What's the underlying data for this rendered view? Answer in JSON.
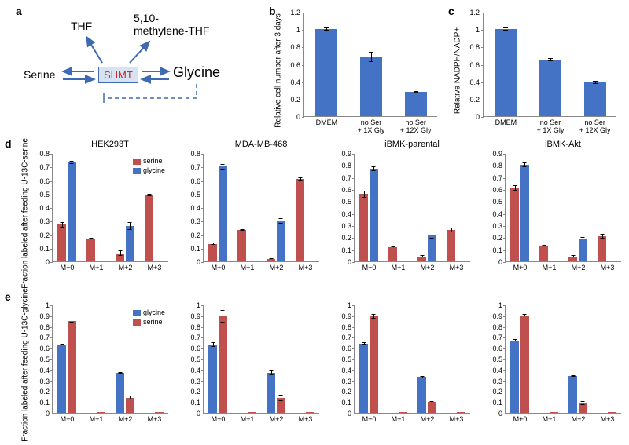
{
  "labels": {
    "a": "a",
    "b": "b",
    "c": "c",
    "d": "d",
    "e": "e"
  },
  "colors": {
    "bar_blue": "#4472c4",
    "bar_red": "#c0504d",
    "shmt_box_fill": "#d6e3f3",
    "shmt_box_border": "#3e6ab1",
    "shmt_text": "#d02626",
    "axis": "#888888",
    "text": "#000000"
  },
  "panel_a": {
    "serine": "Serine",
    "glycine": "Glycine",
    "thf": "THF",
    "methf": "5,10-\nmethylene-THF",
    "shmt": "SHMT"
  },
  "panel_b": {
    "ylabel": "Relative cell number\nafter 3 days",
    "ylim": [
      0,
      1.2
    ],
    "ystep": 0.2,
    "categories": [
      "DMEM",
      "no Ser\n+ 1X Gly",
      "no Ser\n+ 12X Gly"
    ],
    "values": [
      1.0,
      0.68,
      0.28
    ],
    "errors": [
      0.02,
      0.06,
      0.01
    ],
    "bar_color": "#4472c4",
    "bar_width": 0.5
  },
  "panel_c": {
    "ylabel": "Relative NADPH/NADP+",
    "ylim": [
      0,
      1.2
    ],
    "ystep": 0.2,
    "categories": [
      "DMEM",
      "no Ser\n+ 1X Gly",
      "no Ser\n+ 12X Gly"
    ],
    "values": [
      1.0,
      0.65,
      0.39
    ],
    "errors": [
      0.02,
      0.02,
      0.02
    ],
    "bar_color": "#4472c4",
    "bar_width": 0.5
  },
  "panel_d": {
    "ylabel": "Fraction labeled\nafter feeding U-13C-serine",
    "legend": [
      {
        "label": "serine",
        "color": "#c0504d"
      },
      {
        "label": "glycine",
        "color": "#4472c4"
      }
    ],
    "xcats": [
      "M+0",
      "M+1",
      "M+2",
      "M+3"
    ],
    "charts": [
      {
        "title": "HEK293T",
        "ylim": [
          0,
          0.8
        ],
        "ystep": 0.1,
        "series": [
          {
            "color": "#c0504d",
            "values": [
              0.27,
              0.17,
              0.06,
              0.49
            ],
            "errors": [
              0.02,
              0.005,
              0.02,
              0.01
            ]
          },
          {
            "color": "#4472c4",
            "values": [
              0.73,
              0,
              0.26,
              0
            ],
            "errors": [
              0.01,
              0,
              0.03,
              0
            ]
          }
        ]
      },
      {
        "title": "MDA-MB-468",
        "ylim": [
          0,
          0.8
        ],
        "ystep": 0.1,
        "series": [
          {
            "color": "#c0504d",
            "values": [
              0.13,
              0.23,
              0.02,
              0.61
            ],
            "errors": [
              0.01,
              0.005,
              0.005,
              0.01
            ]
          },
          {
            "color": "#4472c4",
            "values": [
              0.7,
              0,
              0.3,
              0
            ],
            "errors": [
              0.02,
              0,
              0.02,
              0
            ]
          }
        ]
      },
      {
        "title": "iBMK-parental",
        "ylim": [
          0,
          0.9
        ],
        "ystep": 0.1,
        "series": [
          {
            "color": "#c0504d",
            "values": [
              0.56,
              0.12,
              0.04,
              0.26
            ],
            "errors": [
              0.03,
              0.005,
              0.01,
              0.02
            ]
          },
          {
            "color": "#4472c4",
            "values": [
              0.77,
              0,
              0.22,
              0
            ],
            "errors": [
              0.02,
              0,
              0.03,
              0
            ]
          }
        ]
      },
      {
        "title": "iBMK-Akt",
        "ylim": [
          0,
          0.9
        ],
        "ystep": 0.1,
        "series": [
          {
            "color": "#c0504d",
            "values": [
              0.61,
              0.13,
              0.04,
              0.21
            ],
            "errors": [
              0.02,
              0.005,
              0.01,
              0.02
            ]
          },
          {
            "color": "#4472c4",
            "values": [
              0.8,
              0,
              0.19,
              0
            ],
            "errors": [
              0.02,
              0,
              0.01,
              0
            ]
          }
        ]
      }
    ]
  },
  "panel_e": {
    "ylabel": "Fraction labeled\nafter feeding U-13C-glycine",
    "legend": [
      {
        "label": "glycine",
        "color": "#4472c4"
      },
      {
        "label": "serine",
        "color": "#c0504d"
      }
    ],
    "xcats": [
      "M+0",
      "M+1",
      "M+2",
      "M+3"
    ],
    "charts": [
      {
        "title": "",
        "ylim": [
          0,
          1.0
        ],
        "ystep": 0.1,
        "series": [
          {
            "color": "#4472c4",
            "values": [
              0.63,
              0,
              0.37,
              0
            ],
            "errors": [
              0.01,
              0,
              0.005,
              0
            ]
          },
          {
            "color": "#c0504d",
            "values": [
              0.85,
              0.005,
              0.14,
              0.005
            ],
            "errors": [
              0.02,
              0,
              0.02,
              0
            ]
          }
        ]
      },
      {
        "title": "",
        "ylim": [
          0,
          1.0
        ],
        "ystep": 0.1,
        "series": [
          {
            "color": "#4472c4",
            "values": [
              0.63,
              0,
              0.37,
              0
            ],
            "errors": [
              0.02,
              0,
              0.02,
              0
            ]
          },
          {
            "color": "#c0504d",
            "values": [
              0.89,
              0.01,
              0.14,
              0.005
            ],
            "errors": [
              0.06,
              0,
              0.03,
              0
            ]
          }
        ]
      },
      {
        "title": "",
        "ylim": [
          0,
          1.0
        ],
        "ystep": 0.1,
        "series": [
          {
            "color": "#4472c4",
            "values": [
              0.64,
              0,
              0.33,
              0
            ],
            "errors": [
              0.01,
              0,
              0.01,
              0
            ]
          },
          {
            "color": "#c0504d",
            "values": [
              0.89,
              0.005,
              0.1,
              0.005
            ],
            "errors": [
              0.02,
              0,
              0.01,
              0
            ]
          }
        ]
      },
      {
        "title": "",
        "ylim": [
          0,
          1.0
        ],
        "ystep": 0.1,
        "series": [
          {
            "color": "#4472c4",
            "values": [
              0.67,
              0,
              0.34,
              0
            ],
            "errors": [
              0.01,
              0,
              0.01,
              0
            ]
          },
          {
            "color": "#c0504d",
            "values": [
              0.9,
              0.005,
              0.09,
              0.005
            ],
            "errors": [
              0.01,
              0,
              0.02,
              0
            ]
          }
        ]
      }
    ]
  },
  "fontsize": {
    "axis_label": 10,
    "tick": 9,
    "title": 11,
    "panel_label": 14
  }
}
